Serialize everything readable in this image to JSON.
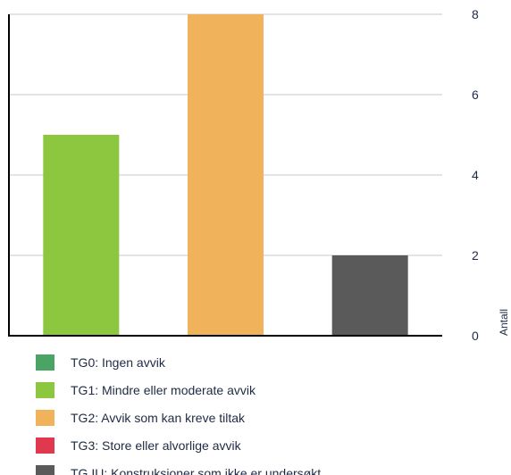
{
  "chart_data": {
    "type": "bar",
    "title": "",
    "xlabel": "",
    "ylabel": "Antall",
    "ylim": [
      0,
      8
    ],
    "yticks": [
      0,
      2,
      4,
      6,
      8
    ],
    "grid": true,
    "legend_position": "bottom",
    "categories": [
      "TG1",
      "TG2",
      "TG IU"
    ],
    "values": [
      5,
      8,
      2
    ],
    "bar_colors": [
      "#8dc63f",
      "#f0b25b",
      "#5a5a5a"
    ],
    "legend": [
      {
        "label": "TG0: Ingen avvik",
        "color": "#4aa564"
      },
      {
        "label": "TG1: Mindre eller moderate avvik",
        "color": "#8dc63f"
      },
      {
        "label": "TG2: Avvik som kan kreve tiltak",
        "color": "#f0b25b"
      },
      {
        "label": "TG3: Store eller alvorlige avvik",
        "color": "#e0394f"
      },
      {
        "label": "TG IU: Konstruksjoner som ikke er undersøkt",
        "color": "#5a5a5a"
      }
    ]
  }
}
